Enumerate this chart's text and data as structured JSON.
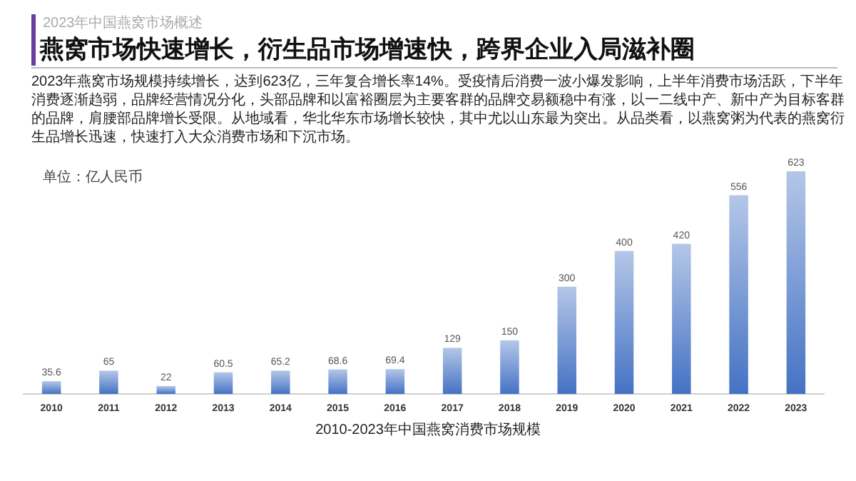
{
  "chart_data": {
    "type": "bar",
    "title": "燕窝市场快速增长，衍生品市场增速快，跨界企业入局滋补圈",
    "annotations": [
      "2023年中国燕窝市场概述",
      "2023年燕窝市场规模持续增长，达到623亿，三年复合增长率14%。受疫情后消费一波小爆发影响，上半年消费市场活跃，下半年消费逐渐趋弱，品牌经营情况分化，头部品牌和以富裕圈层为主要客群的品牌交易额稳中有涨，以一二线中产、新中产为目标客群的品牌，肩腰部品牌增长受限。从地域看，华北华东市场增长较快，其中尤以山东最为突出。从品类看，以燕窝粥为代表的燕窝衍生品增长迅速，快速打入大众消费市场和下沉市场。"
    ],
    "ylabel": "单位：亿人民币",
    "xlabel": "2010-2023年中国燕窝消费市场规模",
    "categories": [
      "2010",
      "2011",
      "2012",
      "2013",
      "2014",
      "2015",
      "2016",
      "2017",
      "2018",
      "2019",
      "2020",
      "2021",
      "2022",
      "2023"
    ],
    "values": [
      35.6,
      65,
      22,
      60.5,
      65.2,
      68.6,
      69.4,
      129,
      150,
      300,
      400,
      420,
      556,
      623
    ],
    "color": "#4472c4",
    "data_labels": true
  }
}
